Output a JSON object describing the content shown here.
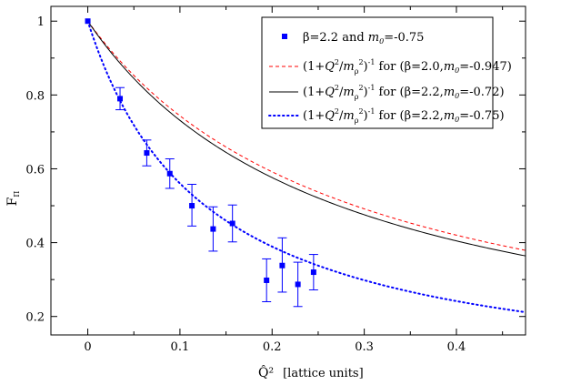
{
  "chart_data": {
    "type": "scatter",
    "title": "",
    "xlabel": "Q̂²",
    "xlabel_sup": "2",
    "xlabel_units": "[lattice units]",
    "ylabel": "F",
    "ylabel_sub": "Π",
    "xlim": [
      -0.04,
      0.475
    ],
    "ylim": [
      0.15,
      1.04
    ],
    "xticks": [
      0,
      0.1,
      0.2,
      0.3,
      0.4
    ],
    "xtick_labels": [
      "0",
      "0.1",
      "0.2",
      "0.3",
      "0.4"
    ],
    "yticks": [
      0.2,
      0.4,
      0.6,
      0.8,
      1.0
    ],
    "ytick_labels": [
      "0.2",
      "0.4",
      "0.6",
      "0.8",
      "1"
    ],
    "legend_position": "top-right",
    "series": [
      {
        "name": "β=2.2 and m0=-0.75",
        "kind": "points",
        "color": "#0000ff",
        "x": [
          0.0,
          0.035,
          0.064,
          0.089,
          0.113,
          0.136,
          0.157,
          0.194,
          0.211,
          0.228,
          0.245
        ],
        "y": [
          1.0,
          0.79,
          0.643,
          0.587,
          0.5,
          0.437,
          0.452,
          0.298,
          0.338,
          0.287,
          0.32
        ],
        "err_lo": [
          0.0,
          0.03,
          0.035,
          0.04,
          0.055,
          0.06,
          0.05,
          0.058,
          0.072,
          0.06,
          0.048
        ],
        "err_hi": [
          0.0,
          0.03,
          0.035,
          0.04,
          0.058,
          0.06,
          0.05,
          0.058,
          0.075,
          0.06,
          0.048
        ]
      },
      {
        "name": "(1+Q²/mρ²)⁻¹ for (β=2.0,m0=-0.947)",
        "kind": "vmd",
        "m2": 0.29,
        "color": "#ff0000",
        "dash": "dashed"
      },
      {
        "name": "(1+Q²/mρ²)⁻¹ for (β=2.2,m0=-0.72)",
        "kind": "vmd",
        "m2": 0.272,
        "color": "#000000",
        "dash": "solid"
      },
      {
        "name": "(1+Q²/mρ²)⁻¹ for (β=2.2,m0=-0.75)",
        "kind": "vmd",
        "m2": 0.1275,
        "color": "#0000ff",
        "dash": "dotted"
      }
    ],
    "legend": [
      {
        "main": "β=2.2 and ",
        "m": "m",
        "sub": "0",
        "tail": "=-0.75"
      },
      {
        "pre": "(1+",
        "Q": "Q",
        "sup2": "2",
        "slash": "/",
        "m": "m",
        "rho": "ρ",
        "sup2b": "2",
        "paren": ")",
        "sup": "-1",
        "for": " for (β=2.0,",
        "mm": "m",
        "sub": "0",
        "tail": "=-0.947)"
      },
      {
        "pre": "(1+",
        "Q": "Q",
        "sup2": "2",
        "slash": "/",
        "m": "m",
        "rho": "ρ",
        "sup2b": "2",
        "paren": ")",
        "sup": "-1",
        "for": " for (β=2.2,",
        "mm": "m",
        "sub": "0",
        "tail": "=-0.72)"
      },
      {
        "pre": "(1+",
        "Q": "Q",
        "sup2": "2",
        "slash": "/",
        "m": "m",
        "rho": "ρ",
        "sup2b": "2",
        "paren": ")",
        "sup": "-1",
        "for": " for (β=2.2,",
        "mm": "m",
        "sub": "0",
        "tail": "=-0.75)"
      }
    ]
  }
}
